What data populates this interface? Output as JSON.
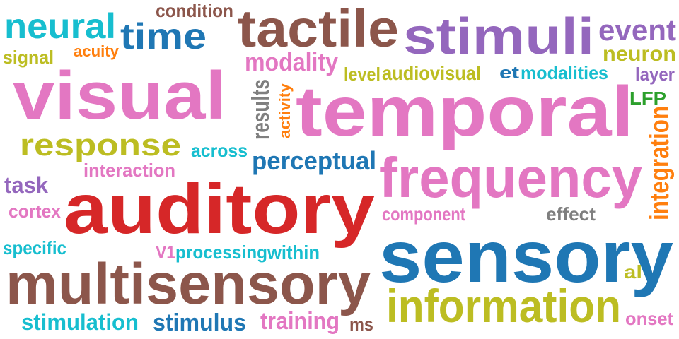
{
  "colors": {
    "pink": "#e377c2",
    "red": "#d62728",
    "brown": "#8c564b",
    "blue": "#1f77b4",
    "cyan": "#17becf",
    "olive": "#bcbd22",
    "purple": "#9467bd",
    "orange": "#ff7f0e",
    "green": "#2ca02c",
    "gray": "#7f7f7f",
    "background": "#ffffff"
  },
  "words": [
    {
      "id": "visual",
      "text": "visual",
      "color": "#e377c2",
      "rotated": false
    },
    {
      "id": "temporal",
      "text": "temporal",
      "color": "#e377c2",
      "rotated": false
    },
    {
      "id": "auditory",
      "text": "auditory",
      "color": "#d62728",
      "rotated": false
    },
    {
      "id": "sensory",
      "text": "sensory",
      "color": "#1f77b4",
      "rotated": false
    },
    {
      "id": "multisensory",
      "text": "multisensory",
      "color": "#8c564b",
      "rotated": false
    },
    {
      "id": "frequency",
      "text": "frequency",
      "color": "#e377c2",
      "rotated": false
    },
    {
      "id": "tactile",
      "text": "tactile",
      "color": "#8c564b",
      "rotated": false
    },
    {
      "id": "stimuli",
      "text": "stimuli",
      "color": "#9467bd",
      "rotated": false
    },
    {
      "id": "information",
      "text": "information",
      "color": "#bcbd22",
      "rotated": false
    },
    {
      "id": "response",
      "text": "response",
      "color": "#bcbd22",
      "rotated": false
    },
    {
      "id": "time",
      "text": "time",
      "color": "#1f77b4",
      "rotated": false
    },
    {
      "id": "neural",
      "text": "neural",
      "color": "#17becf",
      "rotated": false
    },
    {
      "id": "event",
      "text": "event",
      "color": "#9467bd",
      "rotated": false
    },
    {
      "id": "neuron",
      "text": "neuron",
      "color": "#bcbd22",
      "rotated": false
    },
    {
      "id": "modality",
      "text": "modality",
      "color": "#e377c2",
      "rotated": false
    },
    {
      "id": "perceptual",
      "text": "perceptual",
      "color": "#1f77b4",
      "rotated": false
    },
    {
      "id": "condition",
      "text": "condition",
      "color": "#8c564b",
      "rotated": false
    },
    {
      "id": "stimulation",
      "text": "stimulation",
      "color": "#17becf",
      "rotated": false
    },
    {
      "id": "stimulus",
      "text": "stimulus",
      "color": "#1f77b4",
      "rotated": false
    },
    {
      "id": "training",
      "text": "training",
      "color": "#e377c2",
      "rotated": false
    },
    {
      "id": "audiovisual",
      "text": "audiovisual",
      "color": "#bcbd22",
      "rotated": false
    },
    {
      "id": "modalities",
      "text": "modalities",
      "color": "#17becf",
      "rotated": false
    },
    {
      "id": "et",
      "text": "et",
      "color": "#1f77b4",
      "rotated": false
    },
    {
      "id": "level",
      "text": "level",
      "color": "#bcbd22",
      "rotated": false
    },
    {
      "id": "layer",
      "text": "layer",
      "color": "#9467bd",
      "rotated": false
    },
    {
      "id": "results",
      "text": "results",
      "color": "#7f7f7f",
      "rotated": true
    },
    {
      "id": "activity",
      "text": "activity",
      "color": "#ff7f0e",
      "rotated": true
    },
    {
      "id": "integration",
      "text": "integration",
      "color": "#ff7f0e",
      "rotated": true
    },
    {
      "id": "lfp",
      "text": "LFP",
      "color": "#2ca02c",
      "rotated": false
    },
    {
      "id": "across",
      "text": "across",
      "color": "#17becf",
      "rotated": false
    },
    {
      "id": "interaction",
      "text": "interaction",
      "color": "#e377c2",
      "rotated": false
    },
    {
      "id": "task",
      "text": "task",
      "color": "#9467bd",
      "rotated": false
    },
    {
      "id": "cortex",
      "text": "cortex",
      "color": "#e377c2",
      "rotated": false
    },
    {
      "id": "specific",
      "text": "specific",
      "color": "#17becf",
      "rotated": false
    },
    {
      "id": "v1",
      "text": "V1",
      "color": "#e377c2",
      "rotated": false
    },
    {
      "id": "processing",
      "text": "processing",
      "color": "#17becf",
      "rotated": false
    },
    {
      "id": "within",
      "text": "within",
      "color": "#17becf",
      "rotated": false
    },
    {
      "id": "component",
      "text": "component",
      "color": "#e377c2",
      "rotated": false
    },
    {
      "id": "effect",
      "text": "effect",
      "color": "#7f7f7f",
      "rotated": false
    },
    {
      "id": "al",
      "text": "al",
      "color": "#bcbd22",
      "rotated": false
    },
    {
      "id": "onset",
      "text": "onset",
      "color": "#e377c2",
      "rotated": false
    },
    {
      "id": "ms",
      "text": "ms",
      "color": "#8c564b",
      "rotated": false
    },
    {
      "id": "signal",
      "text": "signal",
      "color": "#bcbd22",
      "rotated": false
    },
    {
      "id": "acuity",
      "text": "acuity",
      "color": "#ff7f0e",
      "rotated": false
    }
  ]
}
